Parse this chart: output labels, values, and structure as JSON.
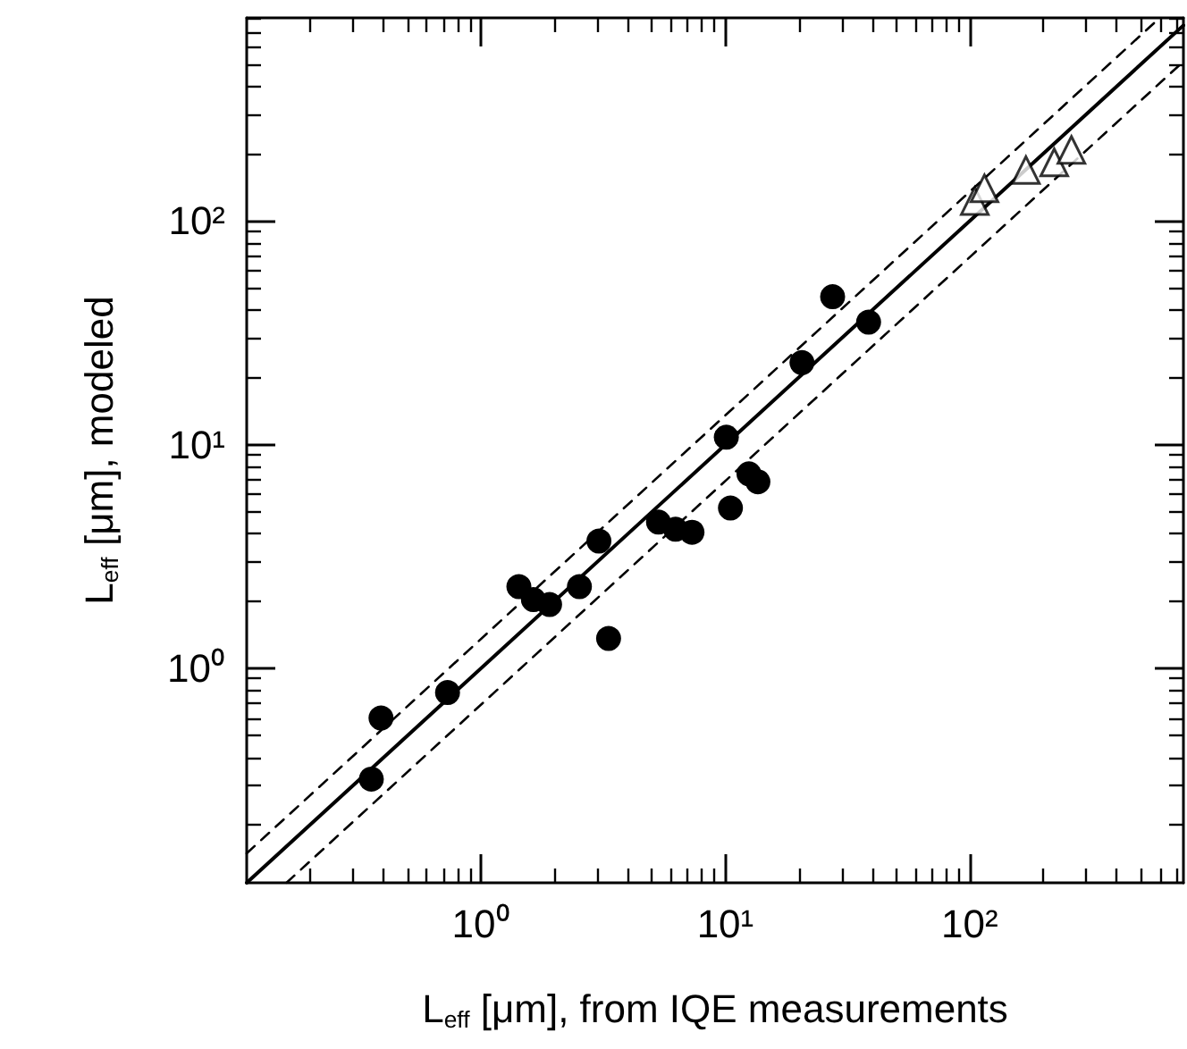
{
  "chart_data": {
    "type": "scatter",
    "xlabel": "L$_{eff}$ [μm], from IQE measurements",
    "ylabel": "L$_{eff}$ [μm], modeled",
    "log": "xy",
    "xlim": [
      0.11,
      750
    ],
    "ylim": [
      0.11,
      810
    ],
    "xticks": [
      {
        "value": 1,
        "label": "10⁰"
      },
      {
        "value": 10,
        "label": "10¹"
      },
      {
        "value": 100,
        "label": "10²"
      }
    ],
    "yticks": [
      {
        "value": 1,
        "label": "10⁰"
      },
      {
        "value": 10,
        "label": "10¹"
      },
      {
        "value": 100,
        "label": "10²"
      }
    ],
    "series": [
      {
        "marker": "circle",
        "color": "#000000",
        "x": [
          0.356,
          0.39,
          0.73,
          1.43,
          1.64,
          1.91,
          2.53,
          3.04,
          3.33,
          5.33,
          6.26,
          7.31,
          10.1,
          10.5,
          12.5,
          13.6,
          27.5,
          38.6,
          20.6
        ],
        "values": [
          0.32,
          0.6,
          0.78,
          2.32,
          2.03,
          1.93,
          2.32,
          3.71,
          1.36,
          4.51,
          4.19,
          4.06,
          10.8,
          5.21,
          7.41,
          6.83,
          45.9,
          35.3,
          23.3
        ]
      },
      {
        "marker": "triangle",
        "color": "#000000",
        "x": [
          105,
          115,
          170,
          222,
          261
        ],
        "values": [
          123,
          140,
          169,
          183,
          208
        ]
      },
      {
        "type": "line",
        "marker": "none",
        "line_style": "solid",
        "color": "#000000",
        "x": [
          0.11,
          750
        ],
        "values": [
          0.11,
          750
        ]
      },
      {
        "type": "line",
        "marker": "none",
        "line_style": "dashed",
        "color": "#000000",
        "x": [
          0.11,
          600
        ],
        "values": [
          0.149,
          810
        ]
      },
      {
        "type": "line",
        "marker": "none",
        "line_style": "dashed",
        "color": "#000000",
        "x": [
          0.16,
          750
        ],
        "values": [
          0.11,
          517
        ]
      }
    ]
  }
}
